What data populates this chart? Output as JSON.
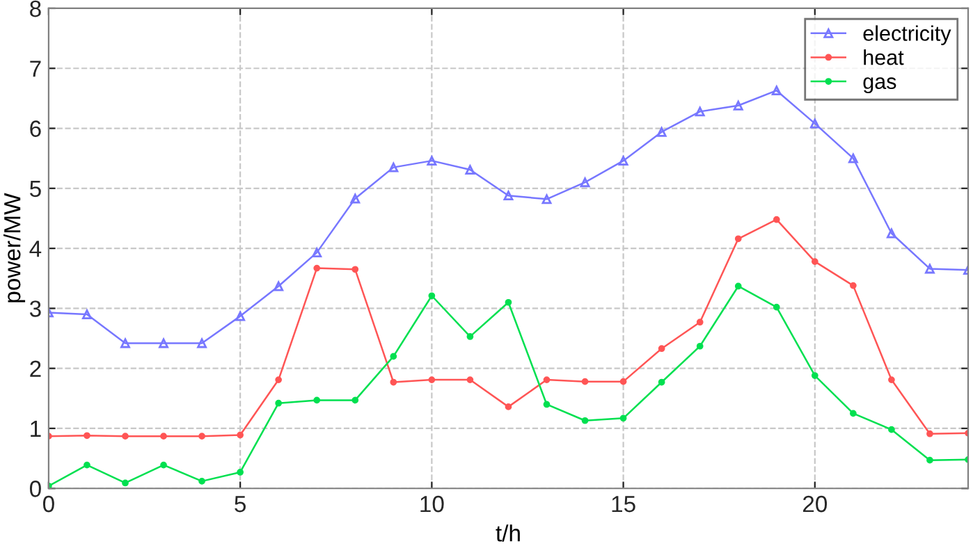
{
  "chart_data": {
    "type": "line",
    "xlabel": "t/h",
    "ylabel": "power/MW",
    "x": [
      0,
      1,
      2,
      3,
      4,
      5,
      6,
      7,
      8,
      9,
      10,
      11,
      12,
      13,
      14,
      15,
      16,
      17,
      18,
      19,
      20,
      21,
      22,
      23,
      24
    ],
    "series": [
      {
        "name": "electricity",
        "color": "#7777ff",
        "marker": "triangle",
        "values": [
          2.93,
          2.9,
          2.42,
          2.42,
          2.42,
          2.87,
          3.37,
          3.93,
          4.83,
          5.35,
          5.46,
          5.31,
          4.88,
          4.82,
          5.1,
          5.46,
          5.94,
          6.28,
          6.38,
          6.63,
          6.08,
          5.5,
          4.25,
          3.66,
          3.64
        ]
      },
      {
        "name": "heat",
        "color": "#ff5555",
        "marker": "circle",
        "values": [
          0.87,
          0.88,
          0.87,
          0.87,
          0.87,
          0.89,
          1.81,
          3.67,
          3.65,
          1.77,
          1.81,
          1.81,
          1.36,
          1.81,
          1.78,
          1.78,
          2.33,
          2.77,
          4.16,
          4.48,
          3.78,
          3.38,
          1.81,
          0.91,
          0.92
        ]
      },
      {
        "name": "gas",
        "color": "#00e050",
        "marker": "circle",
        "values": [
          0.04,
          0.39,
          0.09,
          0.39,
          0.12,
          0.27,
          1.42,
          1.47,
          1.47,
          2.2,
          3.21,
          2.53,
          3.1,
          1.4,
          1.13,
          1.17,
          1.77,
          2.37,
          3.37,
          3.02,
          1.88,
          1.25,
          0.98,
          0.47,
          0.48
        ]
      }
    ],
    "xlim": [
      0,
      24
    ],
    "xticks": [
      0,
      5,
      10,
      15,
      20
    ],
    "ylim": [
      0,
      8
    ],
    "yticks": [
      0,
      1,
      2,
      3,
      4,
      5,
      6,
      7,
      8
    ],
    "grid": true,
    "legend": "top right",
    "line_style": "solid"
  }
}
